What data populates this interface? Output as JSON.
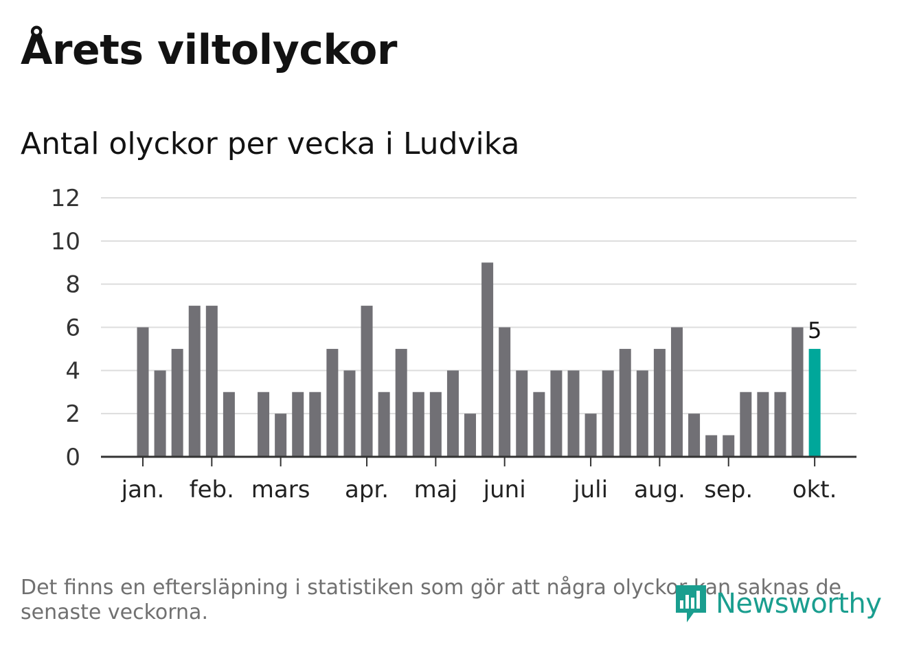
{
  "header": {
    "title": "Årets viltolyckor",
    "subtitle": "Antal olyckor per vecka i Ludvika"
  },
  "footnote": "Det finns en eftersläpning i statistiken som gör att några olyckor kan saknas de senaste veckorna.",
  "logo": {
    "text": "Newsworthy",
    "icon": "bar-chart-badge-icon"
  },
  "colors": {
    "bar": "#717075",
    "highlight": "#00a79a",
    "grid": "#dddddd",
    "axis": "#333333"
  },
  "chart_data": {
    "type": "bar",
    "title": "Antal olyckor per vecka i Ludvika",
    "xlabel": "",
    "ylabel": "",
    "ylim": [
      0,
      12
    ],
    "yticks": [
      0,
      2,
      4,
      6,
      8,
      10,
      12
    ],
    "grid": true,
    "weeks": [
      1,
      2,
      3,
      4,
      5,
      6,
      7,
      8,
      9,
      10,
      11,
      12,
      13,
      14,
      15,
      16,
      17,
      18,
      19,
      20,
      21,
      22,
      23,
      24,
      25,
      26,
      27,
      28,
      29,
      30,
      31,
      32,
      33,
      34,
      35,
      36,
      37,
      38,
      39,
      40
    ],
    "values": [
      6,
      4,
      5,
      7,
      7,
      3,
      0,
      3,
      2,
      3,
      3,
      5,
      4,
      7,
      3,
      5,
      3,
      3,
      4,
      2,
      9,
      6,
      4,
      3,
      4,
      4,
      2,
      4,
      5,
      4,
      5,
      6,
      2,
      1,
      1,
      3,
      3,
      3,
      6,
      5
    ],
    "highlight_index": 39,
    "highlight_label": "5",
    "month_ticks": [
      {
        "label": "jan.",
        "week": 1
      },
      {
        "label": "feb.",
        "week": 5
      },
      {
        "label": "mars",
        "week": 9
      },
      {
        "label": "apr.",
        "week": 14
      },
      {
        "label": "maj",
        "week": 18
      },
      {
        "label": "juni",
        "week": 22
      },
      {
        "label": "juli",
        "week": 27
      },
      {
        "label": "aug.",
        "week": 31
      },
      {
        "label": "sep.",
        "week": 35
      },
      {
        "label": "okt.",
        "week": 40
      }
    ]
  }
}
